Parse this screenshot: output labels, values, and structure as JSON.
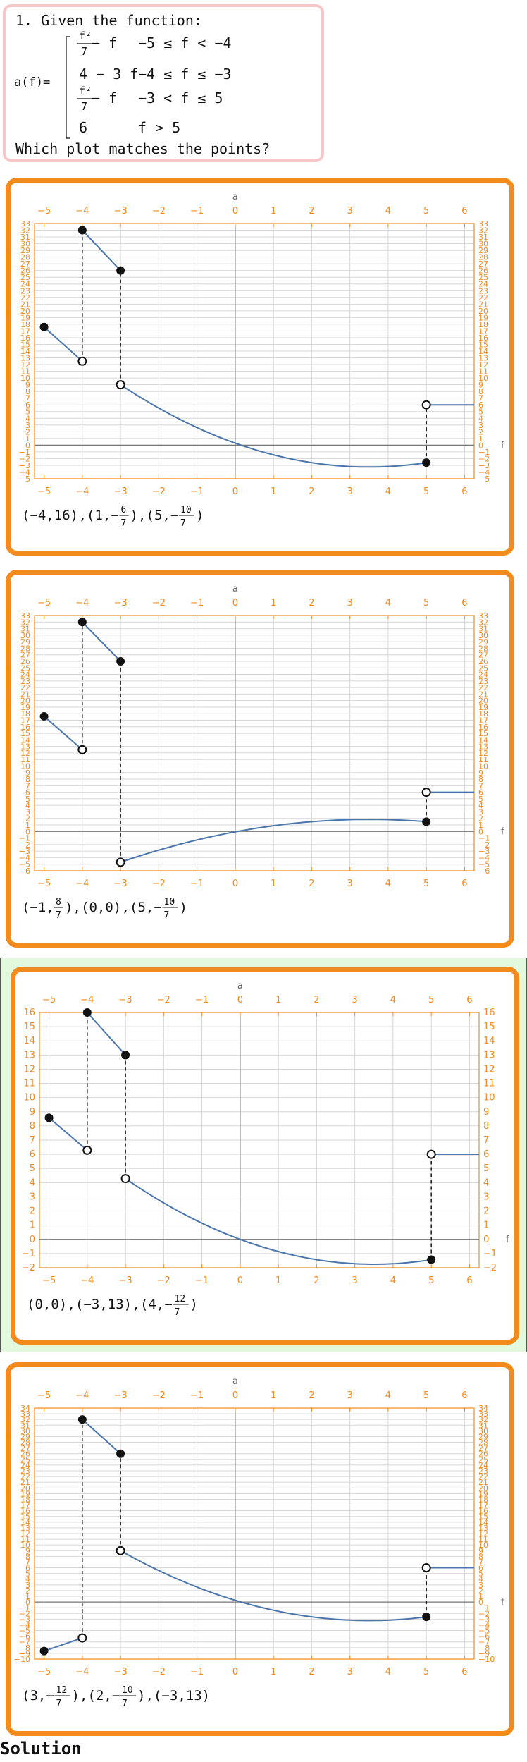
{
  "question": {
    "title": "1. Given the function:",
    "lhs": "a(f)=",
    "pieces": [
      {
        "expr_frac_num": "f²",
        "expr_frac_den": "7",
        "expr_rest": " − f",
        "cond": "−5 ≤ f < −4"
      },
      {
        "expr": "4 − 3 f",
        "cond": "−4 ≤ f ≤ −3"
      },
      {
        "expr_frac_num": "f²",
        "expr_frac_den": "7",
        "expr_rest": " − f",
        "cond": "−3 < f ≤ 5"
      },
      {
        "expr": "6",
        "cond": "f > 5"
      }
    ],
    "prompt": "Which plot matches the points?"
  },
  "colors": {
    "accent": "#f28a1c",
    "curve": "#4a76ad",
    "correct_bg": "#e3f9dd",
    "question_border": "#f7c6c6"
  },
  "solution_label": "Solution",
  "options": [
    {
      "points_text": [
        {
          "parts": [
            "(−4,16)",
            ",",
            "(1,",
            {
              "num": "6",
              "den": "7",
              "neg": true
            },
            ")",
            ",",
            "(5,",
            {
              "num": "10",
              "den": "7",
              "neg": true
            },
            ")"
          ]
        }
      ],
      "chart_data": {
        "type": "line",
        "xlabel": "a",
        "ylabel": "f",
        "xlim": [
          -5.25,
          6.25
        ],
        "ylim": [
          -5,
          33
        ],
        "xticks": [
          -5,
          -4,
          -3,
          -2,
          -1,
          0,
          1,
          2,
          3,
          4,
          5,
          6
        ],
        "yticks": [
          -5,
          -4,
          -3,
          -2,
          -1,
          0,
          1,
          2,
          3,
          4,
          5,
          6,
          7,
          8,
          9,
          10,
          11,
          12,
          13,
          14,
          15,
          16,
          17,
          18,
          19,
          20,
          21,
          22,
          23,
          24,
          25,
          26,
          27,
          28,
          29,
          30,
          31,
          32,
          33
        ],
        "segments": [
          {
            "from": [
              -5,
              17.6
            ],
            "to": [
              -4,
              12.5
            ]
          },
          {
            "from": [
              -4,
              32
            ],
            "to": [
              -3,
              26
            ]
          },
          {
            "curve": "quadratic",
            "from": -3,
            "to": 5,
            "y_start": 9.0,
            "y_end": -2.6
          },
          {
            "from": [
              5,
              6
            ],
            "to": [
              6.25,
              6
            ]
          }
        ],
        "filled_points": [
          [
            -5,
            17.6
          ],
          [
            -4,
            32
          ],
          [
            -3,
            26
          ],
          [
            5,
            -2.6
          ]
        ],
        "open_points": [
          [
            -4,
            12.5
          ],
          [
            -3,
            9.0
          ],
          [
            5,
            6
          ]
        ],
        "dashed": [
          [
            -4,
            12.5,
            32
          ],
          [
            -3,
            9.0,
            26
          ],
          [
            5,
            -2.6,
            6
          ]
        ]
      }
    },
    {
      "points_text": [
        {
          "parts": [
            "(−1,",
            {
              "num": "8",
              "den": "7"
            },
            ")",
            ",",
            "(0,0)",
            ",",
            "(5,",
            {
              "num": "10",
              "den": "7",
              "neg": true
            },
            ")"
          ]
        }
      ],
      "chart_data": {
        "type": "line",
        "xlabel": "a",
        "ylabel": "f",
        "xlim": [
          -5.25,
          6.25
        ],
        "ylim": [
          -6,
          33
        ],
        "xticks": [
          -5,
          -4,
          -3,
          -2,
          -1,
          0,
          1,
          2,
          3,
          4,
          5,
          6
        ],
        "yticks": [
          -6,
          -5,
          -4,
          -3,
          -2,
          -1,
          0,
          1,
          2,
          3,
          4,
          5,
          6,
          7,
          8,
          9,
          10,
          11,
          12,
          13,
          14,
          15,
          16,
          17,
          18,
          19,
          20,
          21,
          22,
          23,
          24,
          25,
          26,
          27,
          28,
          29,
          30,
          31,
          32,
          33
        ],
        "segments": [
          {
            "from": [
              -5,
              17.6
            ],
            "to": [
              -4,
              12.5
            ]
          },
          {
            "from": [
              -4,
              32
            ],
            "to": [
              -3,
              26
            ]
          },
          {
            "curve": "neg-quadratic",
            "from": -3,
            "to": 5,
            "y_start": -4.7,
            "y_end": 1.5
          },
          {
            "from": [
              5,
              6
            ],
            "to": [
              6.25,
              6
            ]
          }
        ],
        "filled_points": [
          [
            -5,
            17.6
          ],
          [
            -4,
            32
          ],
          [
            -3,
            26
          ],
          [
            5,
            1.5
          ]
        ],
        "open_points": [
          [
            -4,
            12.5
          ],
          [
            -3,
            -4.7
          ],
          [
            5,
            6
          ]
        ],
        "dashed": [
          [
            -4,
            12.5,
            32
          ],
          [
            -3,
            -4.7,
            26
          ],
          [
            5,
            1.5,
            6
          ]
        ]
      }
    },
    {
      "points_text": [
        {
          "parts": [
            "(0,0)",
            ",",
            "(−3,13)",
            ",",
            "(4,",
            {
              "num": "12",
              "den": "7",
              "neg": true
            },
            ")"
          ]
        }
      ],
      "chart_data": {
        "type": "line",
        "xlabel": "a",
        "ylabel": "f",
        "xlim": [
          -5.25,
          6.25
        ],
        "ylim": [
          -2,
          16
        ],
        "xticks": [
          -5,
          -4,
          -3,
          -2,
          -1,
          0,
          1,
          2,
          3,
          4,
          5,
          6
        ],
        "yticks": [
          -2,
          -1,
          0,
          1,
          2,
          3,
          4,
          5,
          6,
          7,
          8,
          9,
          10,
          11,
          12,
          13,
          14,
          15,
          16
        ],
        "segments": [
          {
            "from": [
              -5,
              8.571
            ],
            "to": [
              -4,
              6.286
            ]
          },
          {
            "from": [
              -4,
              16
            ],
            "to": [
              -3,
              13
            ]
          },
          {
            "curve": "quadratic",
            "from": -3,
            "to": 5,
            "y_start": 4.286,
            "y_end": -1.429
          },
          {
            "from": [
              5,
              6
            ],
            "to": [
              6.25,
              6
            ]
          }
        ],
        "filled_points": [
          [
            -5,
            8.571
          ],
          [
            -4,
            16
          ],
          [
            -3,
            13
          ],
          [
            5,
            -1.429
          ]
        ],
        "open_points": [
          [
            -4,
            6.286
          ],
          [
            -3,
            4.286
          ],
          [
            5,
            6
          ]
        ],
        "dashed": [
          [
            -4,
            6.286,
            16
          ],
          [
            -3,
            4.286,
            13
          ],
          [
            5,
            -1.429,
            6
          ]
        ]
      }
    },
    {
      "points_text": [
        {
          "parts": [
            "(3,",
            {
              "num": "12",
              "den": "7",
              "neg": true
            },
            ")",
            ",",
            "(2,",
            {
              "num": "10",
              "den": "7",
              "neg": true
            },
            ")",
            ",",
            "(−3,13)"
          ]
        }
      ],
      "chart_data": {
        "type": "line",
        "xlabel": "a",
        "ylabel": "f",
        "xlim": [
          -5.25,
          6.25
        ],
        "ylim": [
          -10,
          34
        ],
        "xticks": [
          -5,
          -4,
          -3,
          -2,
          -1,
          0,
          1,
          2,
          3,
          4,
          5,
          6
        ],
        "yticks": [
          -10,
          -9,
          -8,
          -7,
          -6,
          -5,
          -4,
          -3,
          -2,
          -1,
          0,
          1,
          2,
          3,
          4,
          5,
          6,
          7,
          8,
          9,
          10,
          11,
          12,
          13,
          14,
          15,
          16,
          17,
          18,
          19,
          20,
          21,
          22,
          23,
          24,
          25,
          26,
          27,
          28,
          29,
          30,
          31,
          32,
          33,
          34
        ],
        "segments": [
          {
            "from": [
              -5,
              -8.6
            ],
            "to": [
              -4,
              -6.3
            ]
          },
          {
            "from": [
              -4,
              32
            ],
            "to": [
              -3,
              26
            ]
          },
          {
            "curve": "quadratic",
            "from": -3,
            "to": 5,
            "y_start": 9.0,
            "y_end": -2.6
          },
          {
            "from": [
              5,
              6
            ],
            "to": [
              6.25,
              6
            ]
          }
        ],
        "filled_points": [
          [
            -5,
            -8.6
          ],
          [
            -4,
            32
          ],
          [
            -3,
            26
          ],
          [
            5,
            -2.6
          ]
        ],
        "open_points": [
          [
            -4,
            -6.3
          ],
          [
            -3,
            9.0
          ],
          [
            5,
            6
          ]
        ],
        "dashed": [
          [
            -4,
            -6.3,
            32
          ],
          [
            -3,
            9.0,
            26
          ],
          [
            5,
            -2.6,
            6
          ]
        ]
      }
    }
  ]
}
